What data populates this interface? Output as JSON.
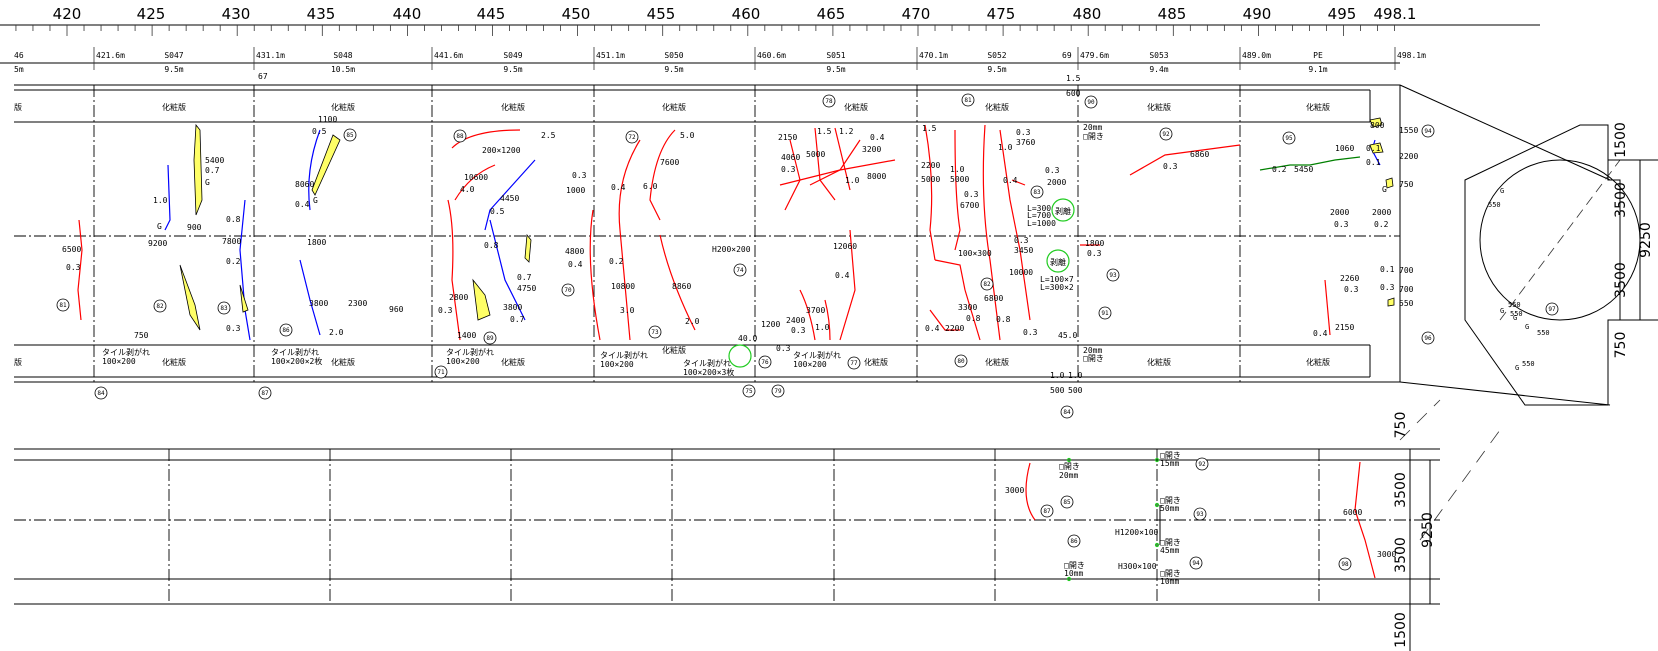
{
  "scale": {
    "ticks": [
      "420",
      "425",
      "430",
      "435",
      "440",
      "445",
      "450",
      "455",
      "460",
      "465",
      "470",
      "475",
      "480",
      "485",
      "490",
      "495",
      "498.1"
    ]
  },
  "spans": {
    "boundaries": [
      "46",
      "421.6m",
      "431.1m",
      "441.6m",
      "451.1m",
      "460.6m",
      "470.1m",
      "479.6m",
      "489.0m",
      "498.1m"
    ],
    "segments": [
      {
        "name": "",
        "length": "5m"
      },
      {
        "name": "S047",
        "length": "9.5m"
      },
      {
        "name": "S048",
        "length": "10.5m"
      },
      {
        "name": "S049",
        "length": "9.5m"
      },
      {
        "name": "S050",
        "length": "9.5m"
      },
      {
        "name": "S051",
        "length": "9.5m"
      },
      {
        "name": "S052",
        "length": "9.5m"
      },
      {
        "name": "S053",
        "length": "9.4m"
      },
      {
        "name": "PE",
        "length": "9.1m"
      }
    ],
    "extra_labels": [
      "67",
      "69"
    ]
  },
  "lining_upper": {
    "band_label": "化粧版",
    "band_label_partial": "版",
    "tile_notes": [
      {
        "title": "タイル剥がれ",
        "size": "100×200"
      },
      {
        "title": "タイル剥がれ",
        "size": "100×200×2枚"
      },
      {
        "title": "タイル剥がれ",
        "size": "100×200"
      },
      {
        "title": "タイル剥がれ",
        "size": "100×200"
      },
      {
        "title": "タイル剥がれ",
        "size": "100×200×3枚"
      },
      {
        "title": "タイル剥がれ",
        "size": "100×200"
      }
    ],
    "labels": [
      "1100",
      "0.5",
      "5400",
      "0.7",
      "G",
      "900",
      "1.0",
      "9200",
      "G",
      "6500",
      "0.3",
      "0.8",
      "7800",
      "0.2",
      "0.3",
      "8060",
      "0.4",
      "G",
      "1800",
      "3800",
      "2300",
      "960",
      "2.0",
      "750",
      "200×1200",
      "2.5",
      "10600",
      "4.0",
      "4450",
      "0.5",
      "0.8",
      "0.7",
      "4750",
      "3800",
      "0.7",
      "2800",
      "1400",
      "0.3",
      "5.0",
      "7600",
      "6.0",
      "0.4",
      "0.3",
      "1000",
      "4800",
      "0.4",
      "0.2",
      "10800",
      "3.0",
      "8860",
      "2.0",
      "H200×200",
      "40.0",
      "1200",
      "0.3",
      "2150",
      "4060",
      "5000",
      "0.3",
      "1.5",
      "1.2",
      "0.4",
      "3200",
      "1.0",
      "8000",
      "12060",
      "0.4",
      "2400",
      "3700",
      "0.3",
      "1.0",
      "1.5",
      "2200",
      "5000",
      "1.0",
      "5000",
      "0.3",
      "6700",
      "0.4",
      "1.0",
      "0.3",
      "3760",
      "0.3",
      "2000",
      "L=300",
      "L=700",
      "L=1000",
      "0.3",
      "3450",
      "10000",
      "100×300",
      "3300",
      "0.8",
      "6800",
      "0.8",
      "0.4",
      "2200",
      "0.3",
      "1.5",
      "600",
      "20mm",
      "□開き",
      "1800",
      "0.3",
      "45.0",
      "20mm",
      "□開き",
      "1.0",
      "1.0",
      "500",
      "500",
      "0.3",
      "6860",
      "800",
      "1550",
      "1060",
      "0.1",
      "0.1",
      "2200",
      "0.2",
      "5450",
      "G",
      "750",
      "2000",
      "2000",
      "0.3",
      "0.2",
      "2260",
      "0.3",
      "0.1",
      "700",
      "0.3",
      "700",
      "550",
      "0.4",
      "2150"
    ],
    "markers": [
      "81",
      "82",
      "83",
      "84",
      "85",
      "86",
      "87",
      "88",
      "89",
      "70",
      "71",
      "72",
      "73",
      "74",
      "75",
      "76",
      "77",
      "78",
      "79",
      "80",
      "81",
      "82",
      "83",
      "84",
      "90",
      "91",
      "92",
      "93",
      "94",
      "95",
      "96",
      "97"
    ],
    "spalling": [
      "剥離",
      "剥離"
    ],
    "spalling_notes": [
      "L=100×7",
      "L=300×2"
    ]
  },
  "cross_section": {
    "dims": [
      "1500",
      "3500",
      "3500",
      "750",
      "9250"
    ],
    "labels": [
      "G",
      "550",
      "G",
      "550",
      "G",
      "550",
      "G",
      "550",
      "G",
      "550"
    ]
  },
  "lining_lower": {
    "labels": [
      "3000",
      "□開き",
      "20mm",
      "□開き",
      "15mm",
      "□開き",
      "50mm",
      "H1200×100",
      "□開き",
      "45mm",
      "H300×100",
      "□開き",
      "10mm",
      "□開き",
      "10mm",
      "6000",
      "3000"
    ],
    "markers": [
      "85",
      "87",
      "92",
      "93",
      "94",
      "86",
      "98"
    ],
    "dims": [
      "750",
      "3500",
      "9250",
      "3500",
      "1500"
    ]
  }
}
